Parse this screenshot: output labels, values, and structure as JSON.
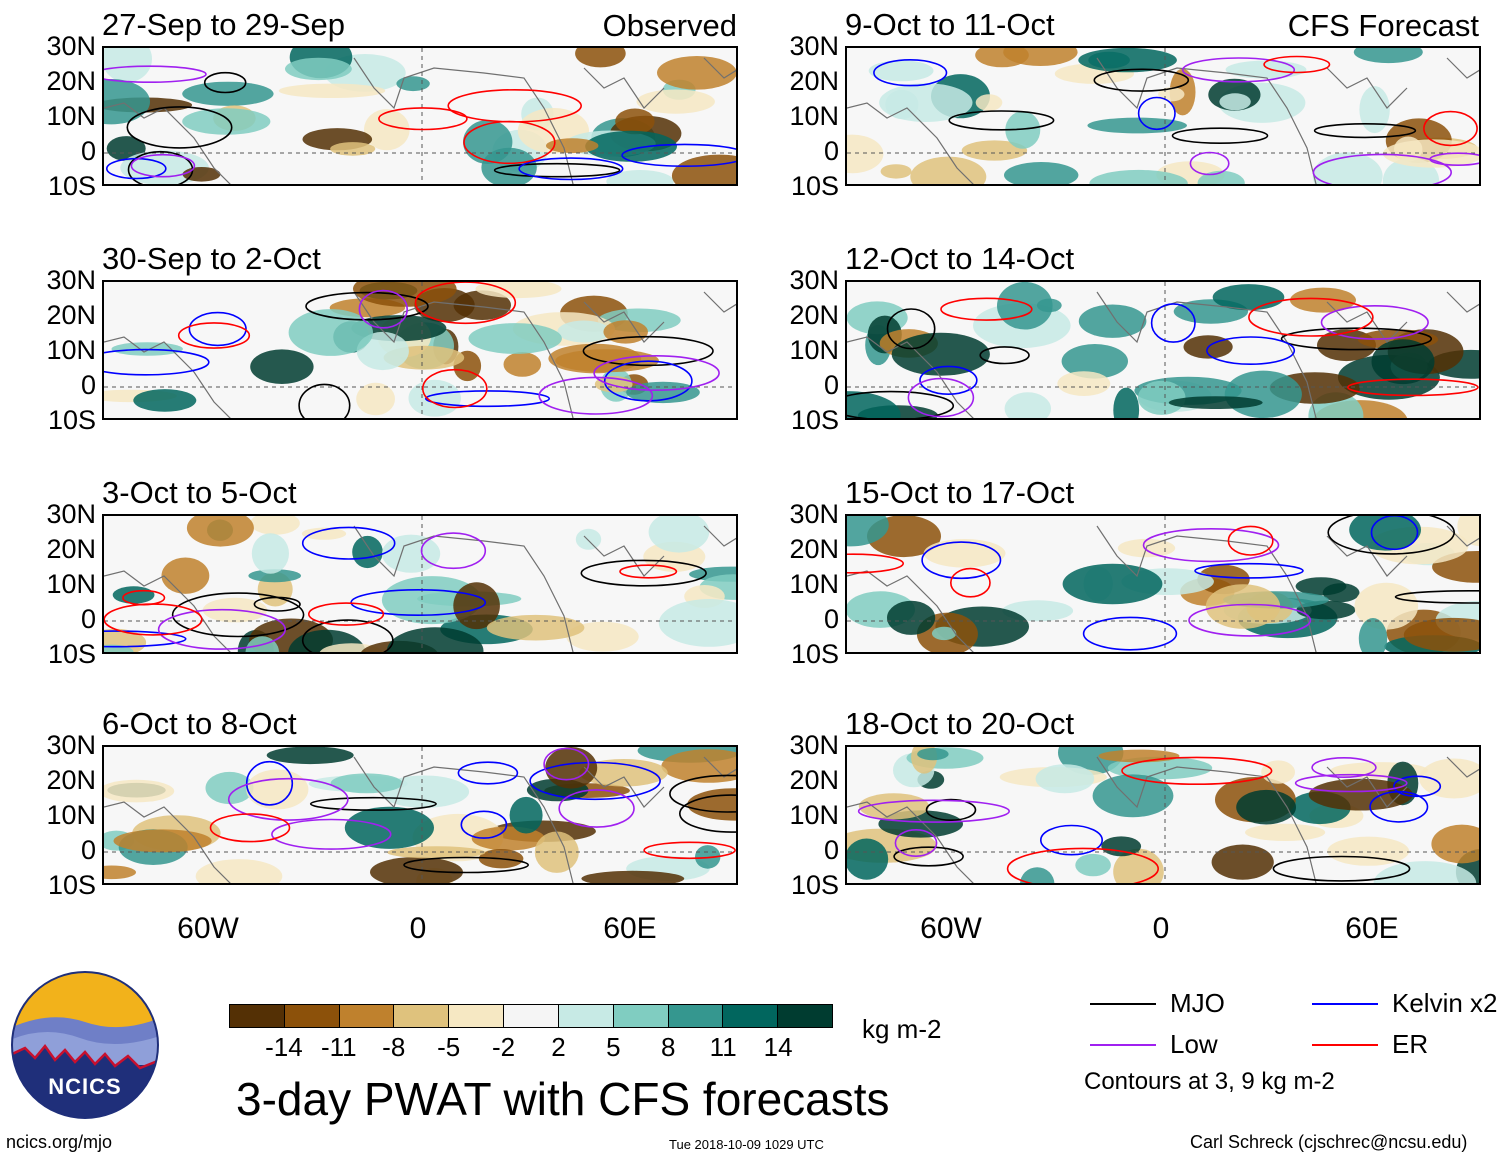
{
  "chart_data": {
    "type": "heatmap",
    "title": "3-day PWAT with CFS forecasts",
    "units": "kg m-2",
    "lat_ticks": [
      "30N",
      "20N",
      "10N",
      "0",
      "10S"
    ],
    "lon_ticks": [
      "60W",
      "0",
      "60E"
    ],
    "lat_range": [
      -10,
      30
    ],
    "lon_range": [
      -90,
      90
    ],
    "observed_label": "Observed",
    "forecast_label": "CFS Forecast",
    "observed_panels": [
      "27-Sep to 29-Sep",
      "30-Sep to 2-Oct",
      "3-Oct to 5-Oct",
      "6-Oct to 8-Oct"
    ],
    "forecast_panels": [
      "9-Oct to 11-Oct",
      "12-Oct to 14-Oct",
      "15-Oct to 17-Oct",
      "18-Oct to 20-Oct"
    ],
    "colorbar": {
      "ticks": [
        "-14",
        "-11",
        "-8",
        "-5",
        "-2",
        "2",
        "5",
        "8",
        "11",
        "14"
      ],
      "colors": [
        "#543005",
        "#8c510a",
        "#bf812d",
        "#dfc27d",
        "#f6e8c3",
        "#f5f5f5",
        "#c7eae5",
        "#80cdc1",
        "#35978f",
        "#01665e",
        "#003c30"
      ]
    },
    "legend": [
      {
        "name": "MJO",
        "color": "#000000"
      },
      {
        "name": "Kelvin x2",
        "color": "#0000ff"
      },
      {
        "name": "Low",
        "color": "#a020f0"
      },
      {
        "name": "ER",
        "color": "#ff0000"
      }
    ],
    "contour_note": "Contours at 3, 9 kg m-2"
  },
  "footer": {
    "logo_text": "NCICS",
    "url": "ncics.org/mjo",
    "timestamp": "Tue 2018-10-09 1029 UTC",
    "author": "Carl Schreck (cjschrec@ncsu.edu)"
  }
}
